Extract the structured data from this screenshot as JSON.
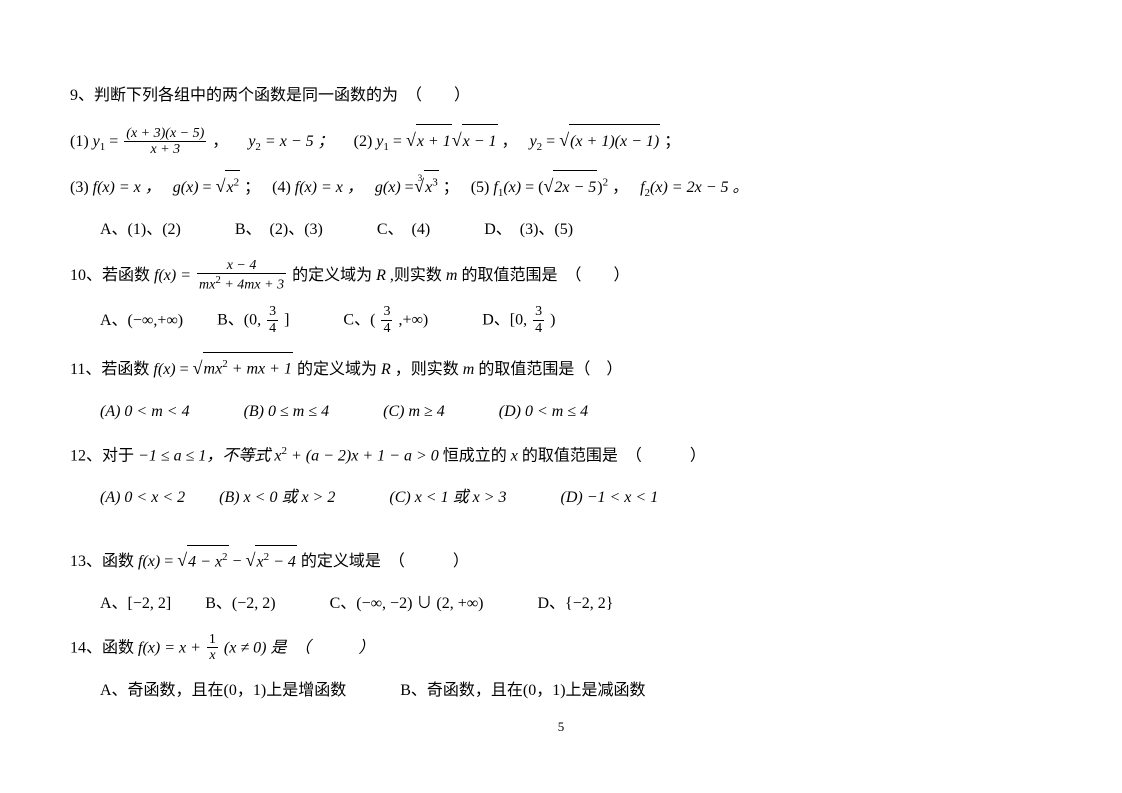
{
  "page_number": "5",
  "q9": {
    "stem": "9、判断下列各组中的两个函数是同一函数的为　（　　）",
    "part1_y1": "(1)",
    "part1_y1_frac_num": "(x + 3)(x − 5)",
    "part1_y1_frac_den": "x + 3",
    "part1_y1_eq": " ，",
    "part1_y2_label": "y",
    "part1_y2_expr": " = x − 5 ；",
    "part2_label": "(2)",
    "part2_y1_rad1": "x + 1",
    "part2_y1_rad2": "x − 1",
    "part2_mid": " ，",
    "part2_y2_rad": "(x + 1)(x − 1)",
    "part2_end": " ；",
    "part3_label": "(3)",
    "part3_fx": "f(x) = x ，",
    "part3_gx_rad": "x",
    "part3_end": " ；",
    "part4_label": "(4)",
    "part4_fx": "f(x) = x ，",
    "part4_gx_rad": "x",
    "part4_end": " ；",
    "part5_label": "(5)",
    "part5_f1_rad": "2x − 5",
    "part5_f2": "f",
    "part5_f2_expr": "(x) = 2x − 5 。",
    "optA": "A、(1)、(2)",
    "optB": "B、　(2)、(3)",
    "optC": "C、　(4)",
    "optD": "D、　(3)、(5)"
  },
  "q10": {
    "stem_pre": "10、若函数",
    "stem_mid": " 的定义域为",
    "stem_post": " ,则实数",
    "stem_end": " 的取值范围是　（　　）",
    "fx": "f(x) = ",
    "frac_num": "x − 4",
    "frac_den": "mx",
    "frac_den2": " + 4mx + 3",
    "optA": "A、(−∞,+∞)",
    "optB_pre": "B、(0, ",
    "optB_num": "3",
    "optB_den": "4",
    "optB_post": " ]",
    "optC_pre": "C、( ",
    "optC_num": "3",
    "optC_den": "4",
    "optC_post": " ,+∞)",
    "optD_pre": "D、[0, ",
    "optD_num": "3",
    "optD_den": "4",
    "optD_post": " )"
  },
  "q11": {
    "stem_pre": "11、若函数",
    "stem_rad": "mx",
    "stem_rad2": " + mx + 1",
    "stem_mid": " 的定义域为",
    "stem_post": "，则实数",
    "stem_end": " 的取值范围是（　）",
    "optA": "(A) 0 < m < 4",
    "optB": "(B)  0 ≤ m ≤ 4",
    "optC": "(C)  m ≥ 4",
    "optD": "(D)  0 < m ≤ 4"
  },
  "q12": {
    "stem_pre": "12、对于",
    "stem_cond": "−1 ≤ a ≤ 1，不等式",
    "stem_expr": "x",
    "stem_expr2": " + (a − 2)x + 1 − a > 0",
    "stem_mid": " 恒成立的",
    "stem_end": " 的取值范围是　（　　　）",
    "optA": "(A)  0 < x < 2",
    "optB": "(B)  x < 0 或 x > 2",
    "optC": "(C)  x < 1 或 x > 3",
    "optD": "(D)   −1 < x < 1"
  },
  "q13": {
    "stem_pre": "13、函数",
    "stem_rad1": "4 − x",
    "stem_rad2": "x",
    "stem_rad2b": " − 4",
    "stem_end": " 的定义域是　（　　　）",
    "optA": "A、[−2, 2]",
    "optB": "B、(−2, 2)",
    "optC": "C、(−∞, −2) ∪ (2, +∞)",
    "optD": "D、{−2, 2}"
  },
  "q14": {
    "stem_pre": "14、函数",
    "stem_fx": "f(x) = x + ",
    "stem_frac_num": "1",
    "stem_frac_den": "x",
    "stem_cond": " (x ≠ 0) 是　（　　　）",
    "optA": "A、奇函数，且在(0，1)上是增函数",
    "optB": "B、奇函数，且在(0，1)上是减函数"
  }
}
